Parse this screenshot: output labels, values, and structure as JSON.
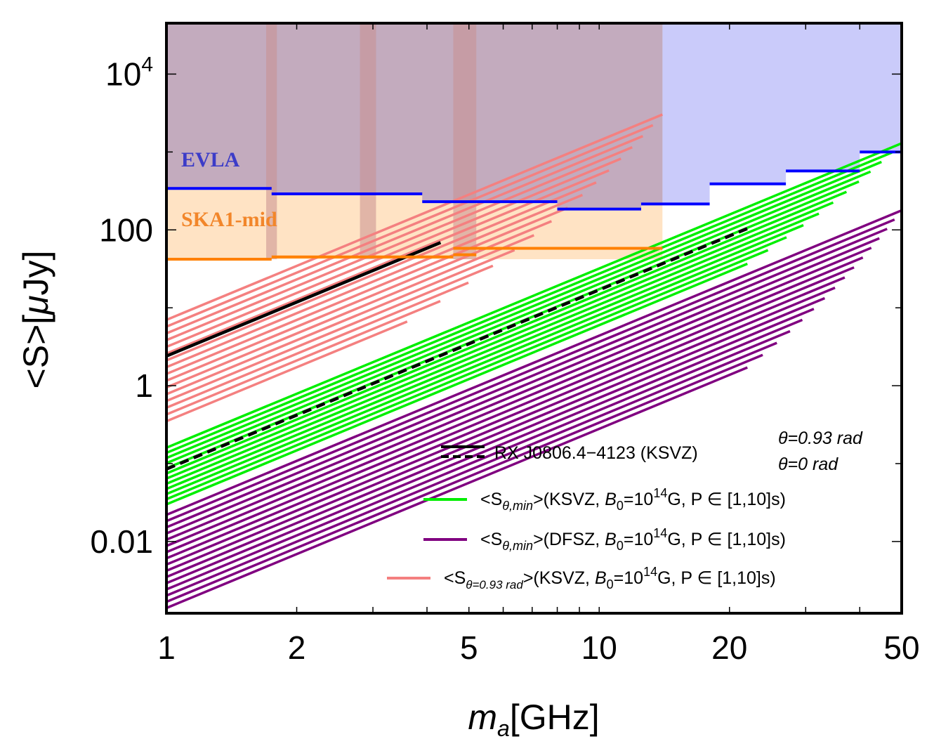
{
  "chart_data": {
    "type": "line",
    "x_scale": "log",
    "y_scale": "log",
    "xlabel_main": "m",
    "xlabel_sub": "a",
    "xlabel_unit": "[GHz]",
    "ylabel_prefix": "<S>[",
    "ylabel_mu": "μ",
    "ylabel_unit": "Jy]",
    "xlim": [
      1,
      50
    ],
    "ylim": [
      0.0012,
      45000
    ],
    "x_ticks": [
      {
        "value": 1,
        "label": "1"
      },
      {
        "value": 2,
        "label": "2"
      },
      {
        "value": 5,
        "label": "5"
      },
      {
        "value": 10,
        "label": "10"
      },
      {
        "value": 20,
        "label": "20"
      },
      {
        "value": 50,
        "label": "50"
      }
    ],
    "y_ticks": [
      {
        "value": 10000,
        "base": "10",
        "exp": "4"
      },
      {
        "value": 100,
        "label": "100"
      },
      {
        "value": 1,
        "label": "1"
      },
      {
        "value": 0.01,
        "label": "0.01"
      }
    ],
    "regions": [
      {
        "name": "EVLA",
        "label": "EVLA",
        "color": "#9fa0f5",
        "label_color": "#3c3cc8",
        "x_end": 14,
        "top": 45000,
        "steps": [
          [
            1,
            1.75,
            340
          ],
          [
            1.75,
            3.9,
            290
          ],
          [
            3.9,
            8,
            230
          ],
          [
            8,
            12.5,
            185
          ],
          [
            12.5,
            18,
            215
          ],
          [
            18,
            27,
            390
          ],
          [
            27,
            40,
            570
          ],
          [
            40,
            50,
            1000
          ]
        ]
      },
      {
        "name": "SKA1-mid",
        "label": "SKA1-mid",
        "color": "#ffd9b0",
        "label_color": "#f2862a",
        "x_end": 14,
        "steps": [
          [
            1,
            1.75,
            42
          ],
          [
            1.75,
            4.6,
            45
          ],
          [
            4.6,
            5.2,
            48
          ],
          [
            4.6,
            14,
            58
          ]
        ]
      }
    ],
    "gap_bands": [
      [
        1.7,
        1.8
      ],
      [
        2.8,
        3.05
      ],
      [
        4.6,
        5.2
      ]
    ],
    "series": [
      {
        "name": "rxj-theta093",
        "legend": "RX J0806.4−4123 (KSVZ)",
        "note": "θ=0.93 rad",
        "color": "#000000",
        "style": "solid",
        "x": [
          1,
          4.3
        ],
        "y_at_1": 2.4
      },
      {
        "name": "rxj-theta0",
        "note": "θ=0 rad",
        "color": "#000000",
        "style": "dashed",
        "x": [
          1,
          22
        ],
        "y_at_1": 0.085
      },
      {
        "name": "ksvz-min",
        "legend_prefix": "<S",
        "legend_sub": "θ,min",
        "legend_mid": ">(KSVZ, ",
        "legend_b": "B",
        "legend_bsub": "0",
        "legend_eq": "=10",
        "legend_exp": "14",
        "legend_end": "G, P ∈ [1,10]s)",
        "color": "#00ee00",
        "count": 12,
        "y_at_1_range": [
          0.03,
          0.16
        ],
        "x_end_range": [
          22,
          50
        ]
      },
      {
        "name": "dfsz-min",
        "legend_prefix": "<S",
        "legend_sub": "θ,min",
        "legend_mid": ">(DFSZ, ",
        "legend_b": "B",
        "legend_bsub": "0",
        "legend_eq": "=10",
        "legend_exp": "14",
        "legend_end": "G, P ∈ [1,10]s)",
        "color": "#800080",
        "count": 16,
        "y_at_1_range": [
          0.0014,
          0.022
        ],
        "x_end_range": [
          22,
          50
        ]
      },
      {
        "name": "ksvz-theta093",
        "legend_prefix": "<S",
        "legend_sub": "θ=0.93 rad",
        "legend_mid": ">(KSVZ, ",
        "legend_b": "B",
        "legend_bsub": "0",
        "legend_eq": "=10",
        "legend_exp": "14",
        "legend_end": "G, P ∈ [1,10]s)",
        "color": "#f48080",
        "count": 16,
        "y_at_1_range": [
          0.35,
          7
        ],
        "x_end_range": [
          3.6,
          14
        ]
      }
    ],
    "slope_loglog": 2.3
  }
}
